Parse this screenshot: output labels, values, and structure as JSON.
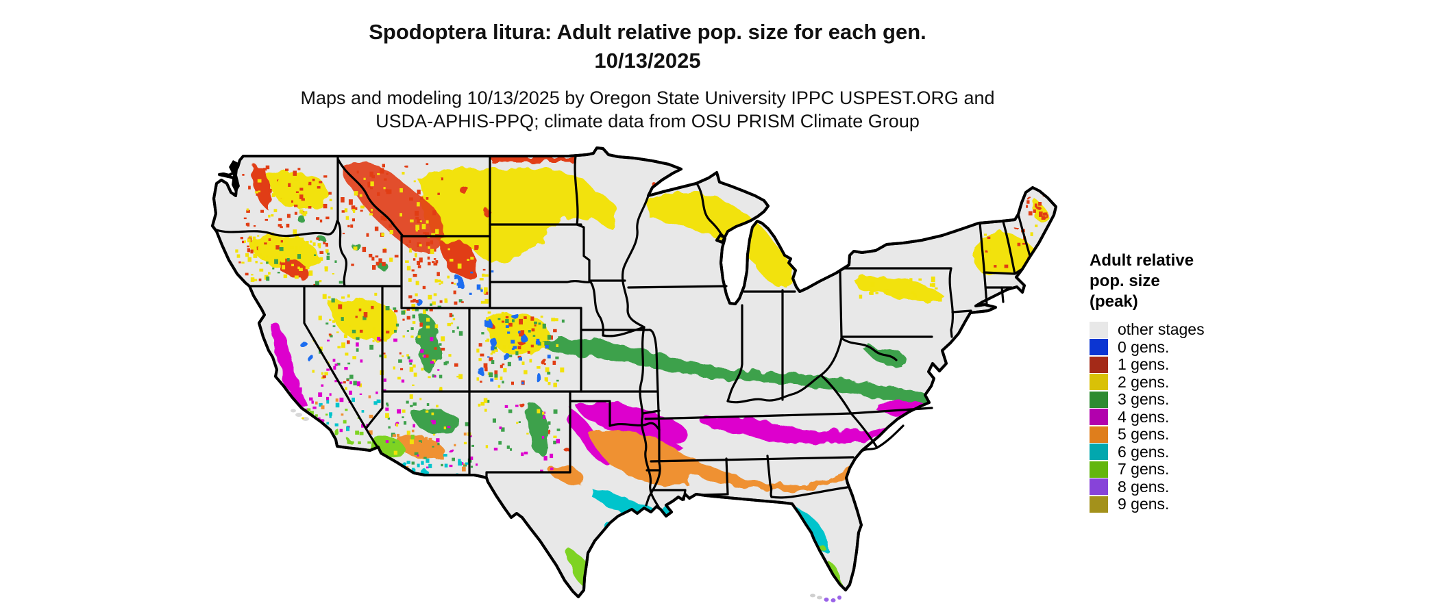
{
  "title": {
    "line1": "Spodoptera litura: Adult relative pop. size for each gen.",
    "line2": "10/13/2025"
  },
  "subtitle": {
    "line1": "Maps and modeling 10/13/2025 by Oregon State University IPPC USPEST.ORG and",
    "line2": "USDA-APHIS-PPQ; climate data from OSU PRISM Climate Group"
  },
  "legend": {
    "title_lines": [
      "Adult relative",
      "pop. size",
      "(peak)"
    ],
    "items": [
      {
        "key": "other",
        "label": "other stages",
        "color": "#e8e8e8",
        "map_color": "#e8e8e8"
      },
      {
        "key": "0",
        "label": "0 gens.",
        "color": "#0b35d2",
        "map_color": "#1e6df0"
      },
      {
        "key": "1",
        "label": "1 gens.",
        "color": "#a42a18",
        "map_color": "#e13d14"
      },
      {
        "key": "2",
        "label": "2 gens.",
        "color": "#d9c107",
        "map_color": "#f2e20a"
      },
      {
        "key": "3",
        "label": "3 gens.",
        "color": "#2e8b31",
        "map_color": "#3da14b"
      },
      {
        "key": "4",
        "label": "4 gens.",
        "color": "#b201ad",
        "map_color": "#dd00cd"
      },
      {
        "key": "5",
        "label": "5 gens.",
        "color": "#df7e1c",
        "map_color": "#ef9133"
      },
      {
        "key": "6",
        "label": "6 gens.",
        "color": "#02a7ae",
        "map_color": "#05c4cc"
      },
      {
        "key": "7",
        "label": "7 gens.",
        "color": "#63b60e",
        "map_color": "#7ed321"
      },
      {
        "key": "8",
        "label": "8 gens.",
        "color": "#8743d9",
        "map_color": "#9a63e8"
      },
      {
        "key": "9",
        "label": "9 gens.",
        "color": "#a3911b",
        "map_color": "#a3911b"
      }
    ]
  },
  "map": {
    "region": "Contiguous United States",
    "land_color": "#e8e8e8",
    "state_border_color": "#000000",
    "background_color": "#ffffff"
  }
}
